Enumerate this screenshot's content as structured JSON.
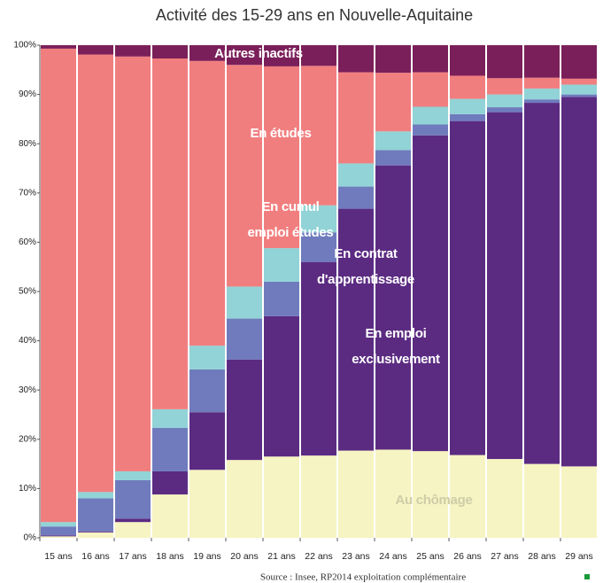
{
  "chart_data": {
    "type": "stacked_bar_100",
    "title": "Activité des 15-29 ans en Nouvelle-Aquitaine",
    "source": "Source : Insee, RP2014 exploitation complémentaire",
    "categories": [
      "15 ans",
      "16 ans",
      "17 ans",
      "18 ans",
      "19 ans",
      "20 ans",
      "21 ans",
      "22 ans",
      "23 ans",
      "24 ans",
      "25 ans",
      "26 ans",
      "27 ans",
      "28 ans",
      "29 ans"
    ],
    "series": [
      {
        "name": "Au chômage",
        "color": "#f6f4c2",
        "values": [
          0.3,
          1.1,
          3.2,
          8.8,
          13.8,
          15.8,
          16.5,
          16.7,
          17.7,
          17.9,
          17.6,
          16.8,
          16,
          15,
          14.5
        ]
      },
      {
        "name": "En emploi exclusivement",
        "color": "#5b2b82",
        "values": [
          0.2,
          0.2,
          0.7,
          4.7,
          11.7,
          20.4,
          28.5,
          39.3,
          49.1,
          57.7,
          64.1,
          67.8,
          70.4,
          73.3,
          75
        ]
      },
      {
        "name": "En contrat d'apprentissage",
        "color": "#6f7bbd",
        "values": [
          1.8,
          6.7,
          7.8,
          8.8,
          8.7,
          8.3,
          7,
          6,
          4.5,
          3.1,
          2.2,
          1.4,
          1,
          0.7,
          0.5
        ]
      },
      {
        "name": "En cumul emploi études",
        "color": "#91d3d6",
        "values": [
          0.9,
          1.3,
          1.8,
          3.8,
          4.8,
          6.5,
          6.8,
          5.5,
          4.7,
          3.8,
          3.6,
          3.1,
          2.6,
          2.2,
          2
        ]
      },
      {
        "name": "En études",
        "color": "#f17e7f",
        "values": [
          96.1,
          88.8,
          84.2,
          71.2,
          57.8,
          45,
          36.9,
          28.3,
          18.5,
          11.9,
          7,
          4.7,
          3.3,
          2.2,
          1.2
        ]
      },
      {
        "name": "Autres inactifs",
        "color": "#7b1f5a",
        "values": [
          0.7,
          1.9,
          2.3,
          2.7,
          3.2,
          4,
          4.3,
          4.2,
          5.5,
          5.6,
          5.5,
          6.2,
          6.7,
          6.6,
          6.8
        ]
      }
    ],
    "ylim": [
      0,
      100
    ],
    "yticks": [
      {
        "value": 0,
        "label": "0%"
      },
      {
        "value": 10,
        "label": "10%"
      },
      {
        "value": 20,
        "label": "20%"
      },
      {
        "value": 30,
        "label": "30%"
      },
      {
        "value": 40,
        "label": "40%"
      },
      {
        "value": 50,
        "label": "50%"
      },
      {
        "value": 60,
        "label": "60%"
      },
      {
        "value": 70,
        "label": "70%"
      },
      {
        "value": 80,
        "label": "80%"
      },
      {
        "value": 90,
        "label": "90%"
      },
      {
        "value": 100,
        "label": "100%"
      }
    ]
  }
}
